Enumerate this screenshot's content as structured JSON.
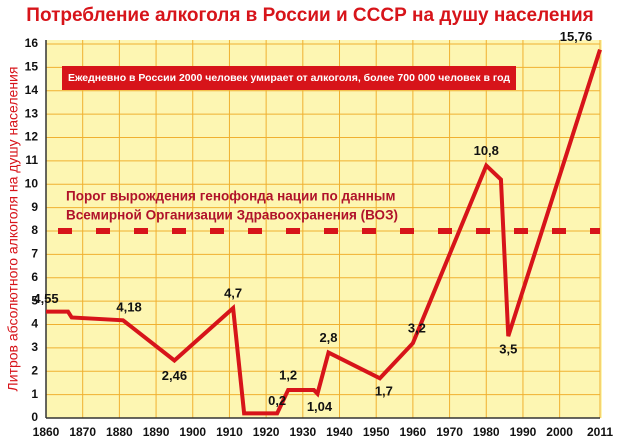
{
  "chart_data": {
    "type": "line",
    "title": "Потребление алкоголя в России и СССР на душу населения",
    "y_label": "Литров абсолютного алкоголя на душу населения",
    "annotation": "Ежедневно в России 2000 человек умирает от алкоголя, более 700 000 человек в год",
    "threshold": {
      "value": 8,
      "label": [
        "Порог вырождения генофонда нации по данным",
        "Всемирной Организации Здравоохранения (ВОЗ)"
      ]
    },
    "x": [
      1860,
      1866,
      1867,
      1881,
      1895,
      1911,
      1914,
      1923,
      1926,
      1933,
      1934,
      1937,
      1951,
      1960,
      1980,
      1984,
      1986,
      2011
    ],
    "series": [
      {
        "color": "#d7141a",
        "values": [
          4.55,
          4.55,
          4.3,
          4.18,
          2.46,
          4.7,
          0.2,
          0.2,
          1.2,
          1.2,
          1.04,
          2.8,
          1.7,
          3.2,
          10.8,
          10.2,
          3.5,
          15.76
        ],
        "value_labels": [
          "4,55",
          null,
          null,
          "4,18",
          "2,46",
          "4,7",
          null,
          "0,2",
          "1,2",
          null,
          "1,04",
          "2,8",
          "1,7",
          "3,2",
          "10,8",
          null,
          "3,5",
          "15,76"
        ]
      }
    ],
    "xlim": [
      1860,
      2011
    ],
    "xticks": [
      1860,
      1870,
      1880,
      1890,
      1900,
      1910,
      1920,
      1930,
      1940,
      1950,
      1960,
      1970,
      1980,
      1990,
      2000,
      2011
    ],
    "ylim": [
      0,
      16
    ],
    "yticks": [
      0,
      1,
      2,
      3,
      4,
      5,
      6,
      7,
      8,
      9,
      10,
      11,
      12,
      13,
      14,
      15,
      16
    ],
    "grid": true
  }
}
